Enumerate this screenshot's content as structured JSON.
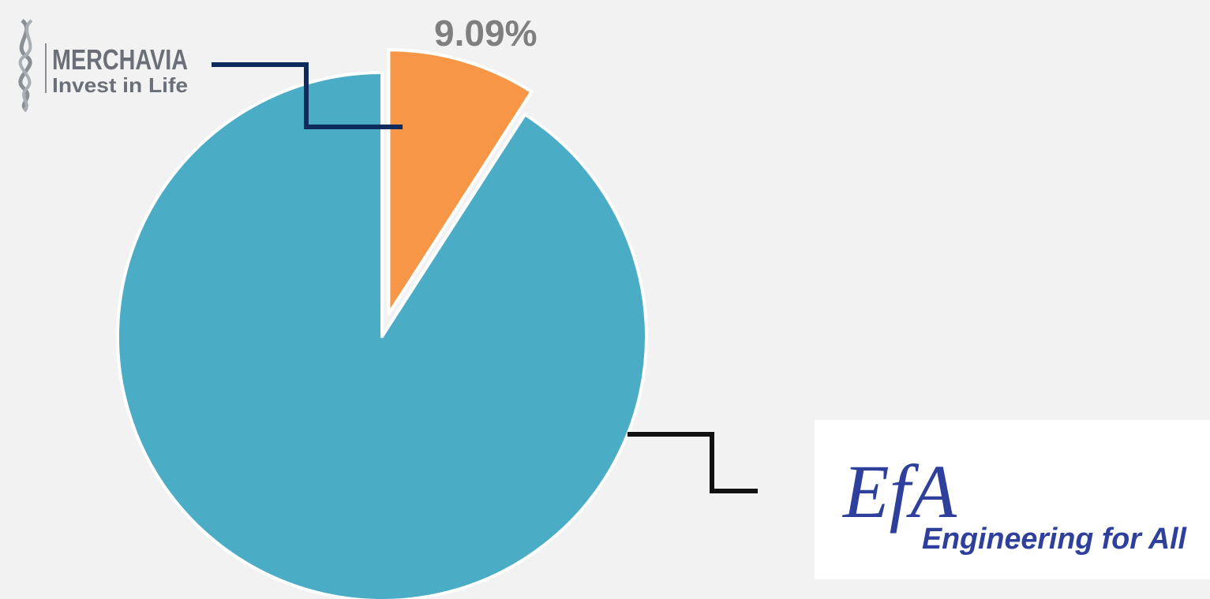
{
  "chart_data": {
    "type": "pie",
    "categories": [
      "MERCHAVIA",
      "EfA"
    ],
    "taglines": [
      "Invest in Life",
      "Engineering for All"
    ],
    "values": [
      9.09,
      90.91
    ],
    "value_labels": [
      "9.09%",
      null
    ],
    "colors": [
      "#f79646",
      "#4bacc6"
    ],
    "explode": [
      true,
      false
    ]
  }
}
